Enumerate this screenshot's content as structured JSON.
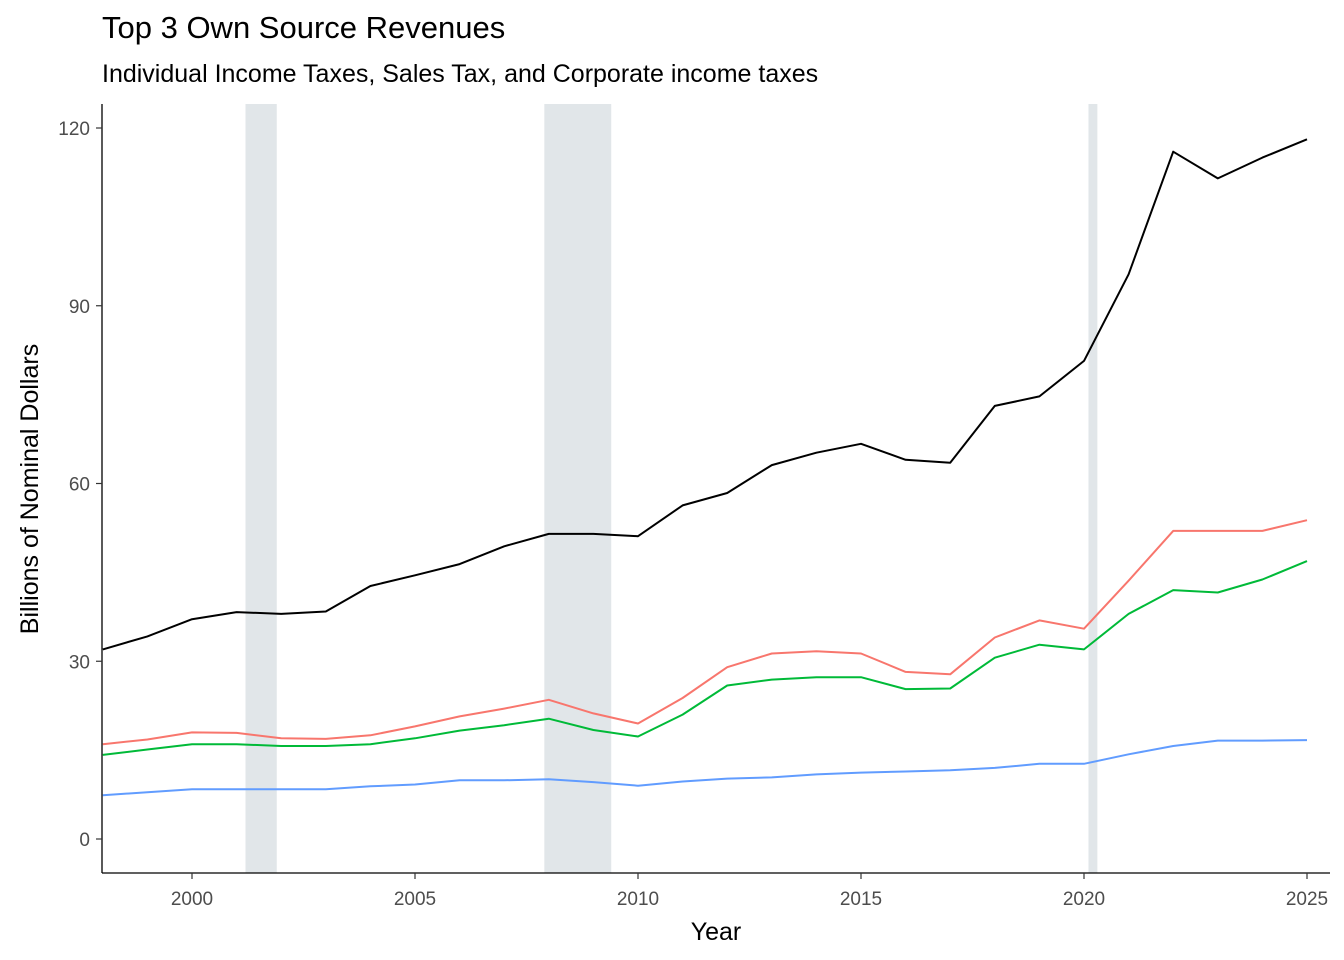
{
  "chart_data": {
    "type": "line",
    "title": "Top 3 Own Source Revenues",
    "subtitle": "Individual Income Taxes, Sales Tax, and Corporate income taxes",
    "xlabel": "Year",
    "ylabel": "Billions of Nominal Dollars",
    "xlim": [
      1998,
      2025.5
    ],
    "ylim": [
      -6,
      124
    ],
    "x_ticks": [
      2000,
      2005,
      2010,
      2015,
      2020,
      2025
    ],
    "y_ticks": [
      0,
      30,
      60,
      90,
      120
    ],
    "grid": false,
    "legend": "none",
    "recessions": [
      [
        2001.2,
        2001.9
      ],
      [
        2007.9,
        2009.4
      ],
      [
        2020.1,
        2020.3
      ]
    ],
    "recession_color": "#e1e6e9",
    "x": [
      1998,
      1999,
      2000,
      2001,
      2002,
      2003,
      2004,
      2005,
      2006,
      2007,
      2008,
      2009,
      2010,
      2011,
      2012,
      2013,
      2014,
      2015,
      2016,
      2017,
      2018,
      2019,
      2020,
      2021,
      2022,
      2023,
      2024,
      2025
    ],
    "series": [
      {
        "color": "#000000",
        "values": [
          32,
          34.2,
          37.1,
          38.3,
          38,
          38.4,
          42.7,
          44.5,
          46.4,
          49.4,
          51.5,
          51.5,
          51.1,
          56.3,
          58.4,
          63.1,
          65.2,
          66.7,
          64,
          63.5,
          73.1,
          74.7,
          80.7,
          95.3,
          116,
          111.5,
          115,
          118.1
        ]
      },
      {
        "color": "#f8766d",
        "values": [
          16,
          16.8,
          18,
          17.9,
          17,
          16.9,
          17.5,
          19,
          20.7,
          22,
          23.5,
          21.2,
          19.5,
          23.8,
          29,
          31.3,
          31.7,
          31.3,
          28.2,
          27.8,
          34,
          36.9,
          35.5,
          43.6,
          52,
          52,
          52,
          53.8
        ]
      },
      {
        "color": "#00ba38",
        "values": [
          14.2,
          15.1,
          16,
          16,
          15.7,
          15.7,
          16,
          17,
          18.3,
          19.2,
          20.3,
          18.4,
          17.3,
          21,
          25.9,
          26.9,
          27.3,
          27.3,
          25.3,
          25.4,
          30.6,
          32.8,
          32,
          38,
          42,
          41.6,
          43.8,
          46.9
        ]
      },
      {
        "color": "#619cff",
        "values": [
          7.4,
          7.9,
          8.4,
          8.4,
          8.4,
          8.4,
          8.9,
          9.2,
          9.9,
          9.9,
          10.1,
          9.6,
          9,
          9.7,
          10.2,
          10.4,
          10.9,
          11.2,
          11.4,
          11.6,
          12,
          12.7,
          12.7,
          14.3,
          15.7,
          16.6,
          16.6,
          16.7
        ]
      }
    ]
  }
}
